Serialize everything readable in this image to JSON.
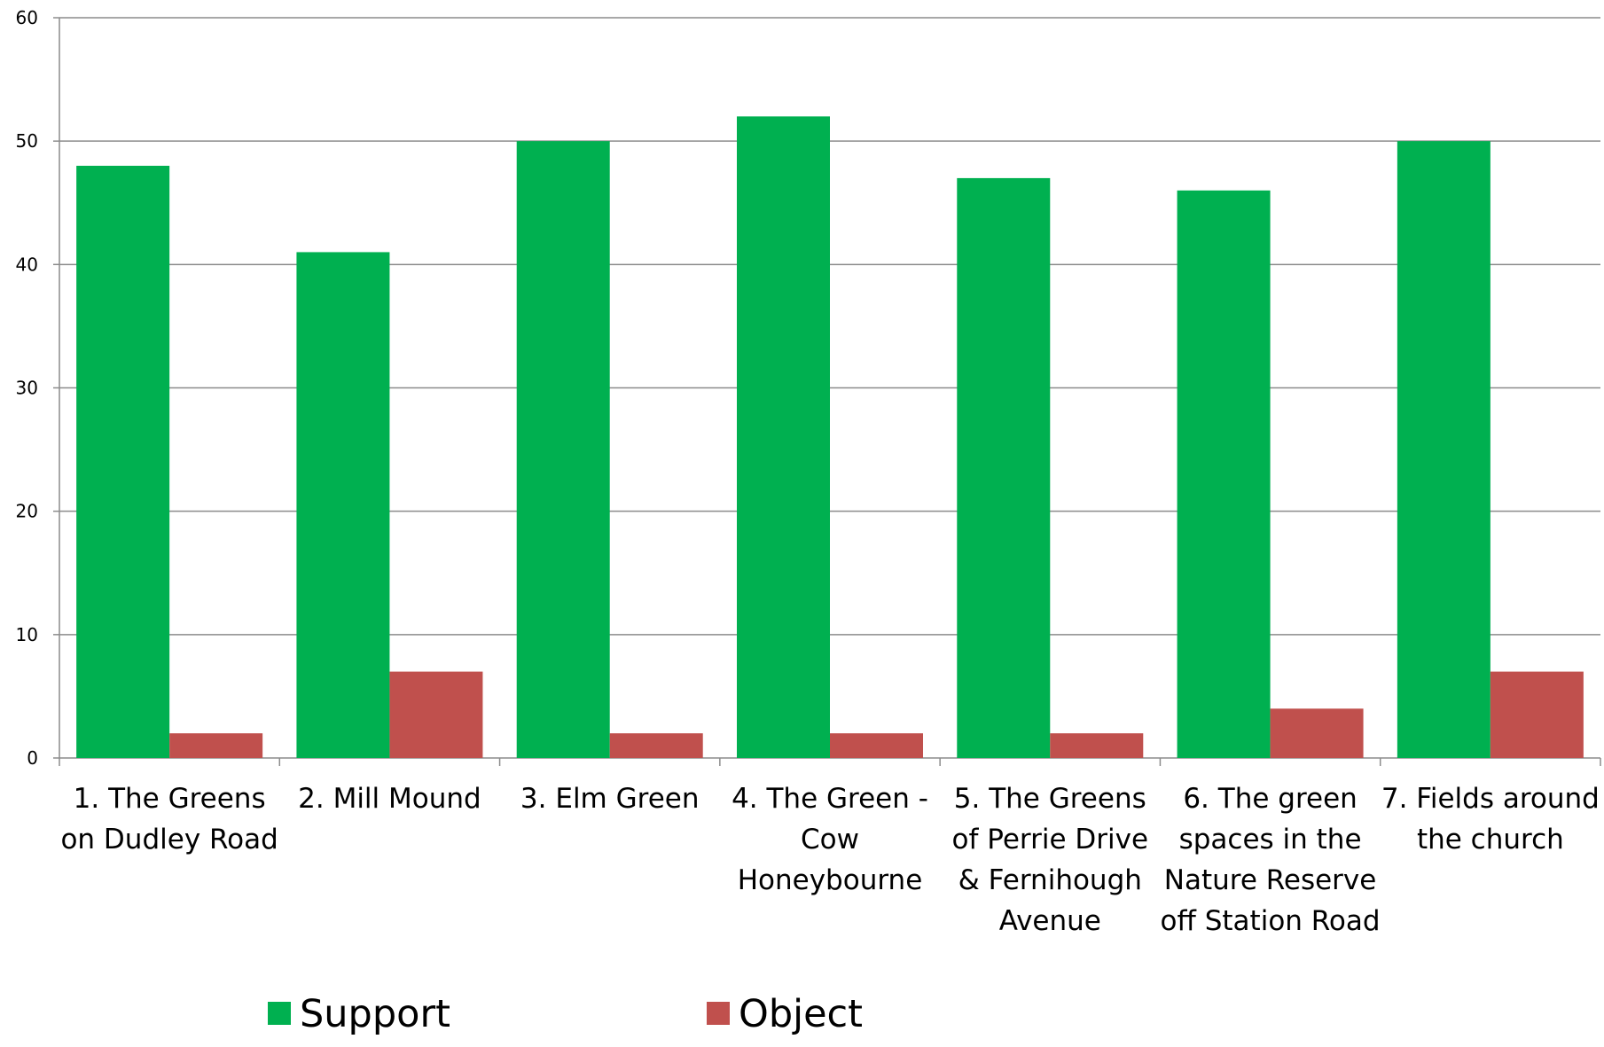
{
  "chart_data": {
    "type": "bar",
    "title": "",
    "xlabel": "",
    "ylabel": "",
    "ylim": [
      0,
      60
    ],
    "yticks": [
      "0",
      "10",
      "20",
      "30",
      "40",
      "50",
      "60"
    ],
    "grid": true,
    "legend_position": "bottom",
    "categories": [
      [
        "1. The Greens",
        "on Dudley Road"
      ],
      [
        "2. Mill Mound"
      ],
      [
        "3.  Elm Green"
      ],
      [
        "4. The Green -",
        "Cow",
        "Honeybourne"
      ],
      [
        "5. The Greens",
        "of Perrie Drive",
        "& Fernihough",
        "Avenue"
      ],
      [
        "6. The green",
        "spaces in the",
        "Nature Reserve",
        "off Station Road"
      ],
      [
        "7. Fields around",
        "the church"
      ]
    ],
    "series": [
      {
        "name": "Support",
        "color": "#00b050",
        "values": [
          48,
          41,
          50,
          52,
          47,
          46,
          50
        ]
      },
      {
        "name": "Object",
        "color": "#c0504d",
        "values": [
          2,
          7,
          2,
          2,
          2,
          4,
          7
        ]
      }
    ]
  }
}
